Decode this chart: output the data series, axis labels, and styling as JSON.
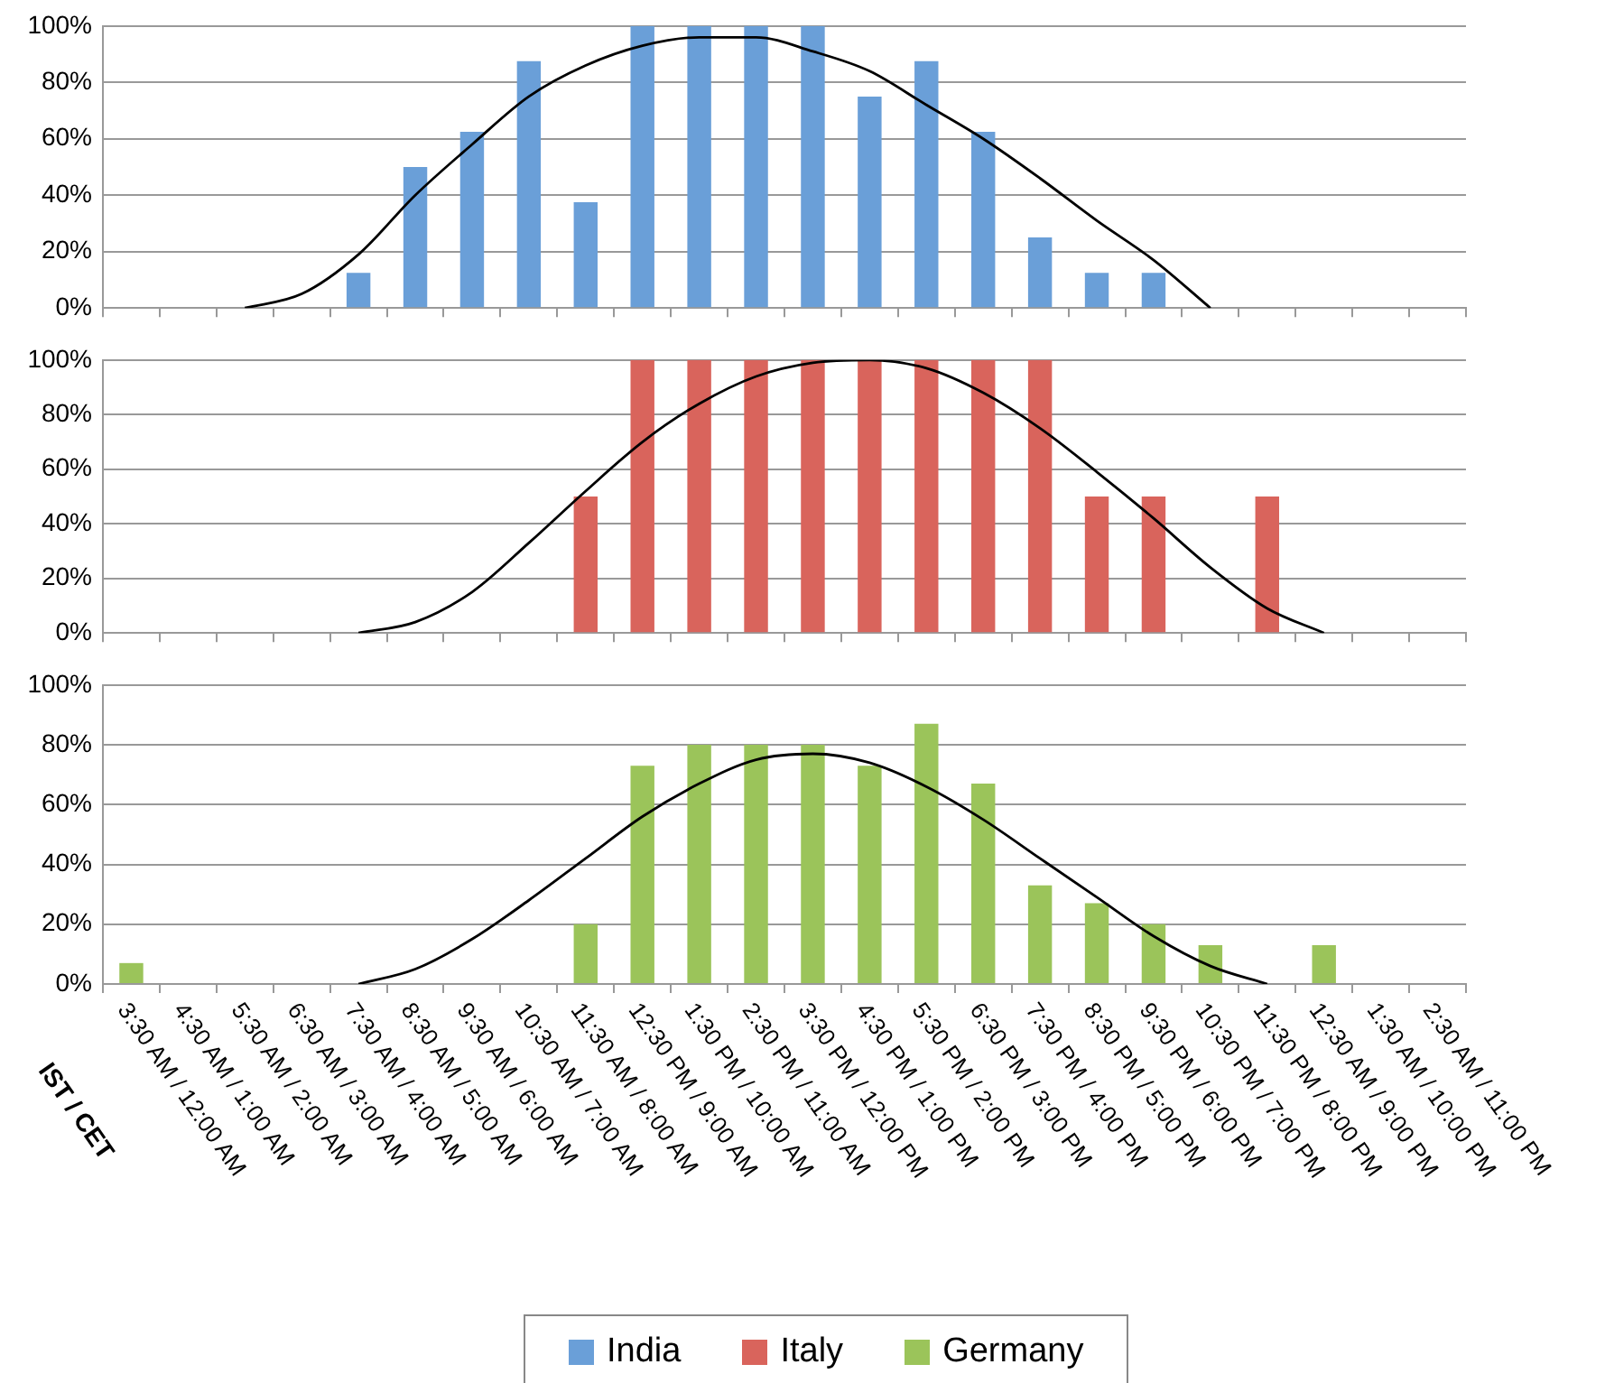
{
  "chart_data": [
    {
      "type": "bar",
      "categories": [
        null,
        null,
        null,
        null,
        null,
        null,
        null,
        null,
        null,
        null,
        null,
        null,
        null,
        null,
        null,
        null,
        null,
        null,
        null,
        null,
        null,
        null,
        null,
        null
      ],
      "series": [
        {
          "name": "India",
          "color": "#6a9fd8",
          "values": [
            null,
            null,
            null,
            null,
            12.5,
            50,
            62.5,
            87.5,
            37.5,
            100,
            100,
            100,
            100,
            75,
            87.5,
            62.5,
            25,
            12.5,
            12.5,
            null,
            null,
            null,
            null,
            null
          ]
        },
        {
          "type": "line",
          "color": "#000000",
          "values": [
            null,
            null,
            0,
            5,
            19,
            40,
            58,
            75,
            86,
            93,
            96,
            96,
            91,
            84,
            72,
            60,
            46,
            31,
            17,
            0,
            null,
            null,
            null,
            null
          ]
        }
      ],
      "ylim": [
        0,
        100
      ],
      "yticks": [
        {
          "value": 0,
          "label": "0%"
        },
        {
          "value": 20,
          "label": "20%"
        },
        {
          "value": 40,
          "label": "40%"
        },
        {
          "value": 60,
          "label": "60%"
        },
        {
          "value": 80,
          "label": "80%"
        },
        {
          "value": 100,
          "label": "100%"
        }
      ],
      "grid": "y",
      "legend": "bottom",
      "tick_labels": "y"
    },
    {
      "type": "bar",
      "categories": [
        null,
        null,
        null,
        null,
        null,
        null,
        null,
        null,
        null,
        null,
        null,
        null,
        null,
        null,
        null,
        null,
        null,
        null,
        null,
        null,
        null,
        null,
        null,
        null
      ],
      "series": [
        {
          "name": "Italy",
          "color": "#d9645c",
          "values": [
            null,
            null,
            null,
            null,
            null,
            null,
            null,
            null,
            50,
            100,
            100,
            100,
            100,
            100,
            100,
            100,
            100,
            50,
            50,
            null,
            50,
            null,
            null,
            null
          ]
        },
        {
          "type": "line",
          "color": "#000000",
          "values": [
            null,
            null,
            null,
            null,
            0,
            4,
            15,
            33,
            52,
            70,
            84,
            94,
            99,
            100,
            97,
            88,
            75,
            59,
            42,
            24,
            9,
            0,
            null,
            null
          ]
        }
      ],
      "ylim": [
        0,
        100
      ],
      "yticks": [
        {
          "value": 0,
          "label": "0%"
        },
        {
          "value": 20,
          "label": "20%"
        },
        {
          "value": 40,
          "label": "40%"
        },
        {
          "value": 60,
          "label": "60%"
        },
        {
          "value": 80,
          "label": "80%"
        },
        {
          "value": 100,
          "label": "100%"
        }
      ],
      "grid": "y",
      "legend": "bottom",
      "tick_labels": "y"
    },
    {
      "type": "bar",
      "xlabel": "IST / CET",
      "categories": [
        "3:30 AM / 12:00 AM",
        "4:30 AM / 1:00 AM",
        "5:30 AM / 2:00 AM",
        "6:30 AM / 3:00 AM",
        "7:30 AM / 4:00 AM",
        "8:30 AM / 5:00 AM",
        "9:30 AM / 6:00 AM",
        "10:30 AM / 7:00 AM",
        "11:30 AM / 8:00 AM",
        "12:30 PM / 9:00 AM",
        "1:30 PM / 10:00 AM",
        "2:30 PM / 11:00 AM",
        "3:30 PM / 12:00 PM",
        "4:30 PM / 1:00 PM",
        "5:30 PM / 2:00 PM",
        "6:30 PM / 3:00 PM",
        "7:30 PM / 4:00 PM",
        "8:30 PM / 5:00 PM",
        "9:30 PM / 6:00 PM",
        "10:30 PM / 7:00 PM",
        "11:30 PM / 8:00 PM",
        "12:30 AM / 9:00 PM",
        "1:30 AM / 10:00 PM",
        "2:30 AM / 11:00 PM"
      ],
      "series": [
        {
          "name": "Germany",
          "color": "#9bc45a",
          "values": [
            7,
            null,
            null,
            null,
            null,
            null,
            null,
            null,
            20,
            73,
            80,
            80,
            80,
            73,
            87,
            67,
            33,
            27,
            20,
            13,
            null,
            13,
            null,
            null
          ]
        },
        {
          "type": "line",
          "color": "#000000",
          "values": [
            null,
            null,
            null,
            null,
            0,
            5,
            15,
            28,
            42,
            56,
            67,
            75,
            77,
            74,
            66,
            55,
            42,
            29,
            16,
            6,
            0,
            null,
            null,
            null
          ]
        }
      ],
      "ylim": [
        0,
        100
      ],
      "yticks": [
        {
          "value": 0,
          "label": "0%"
        },
        {
          "value": 20,
          "label": "20%"
        },
        {
          "value": 40,
          "label": "40%"
        },
        {
          "value": 60,
          "label": "60%"
        },
        {
          "value": 80,
          "label": "80%"
        },
        {
          "value": 100,
          "label": "100%"
        }
      ],
      "grid": "y",
      "legend": "bottom"
    }
  ]
}
